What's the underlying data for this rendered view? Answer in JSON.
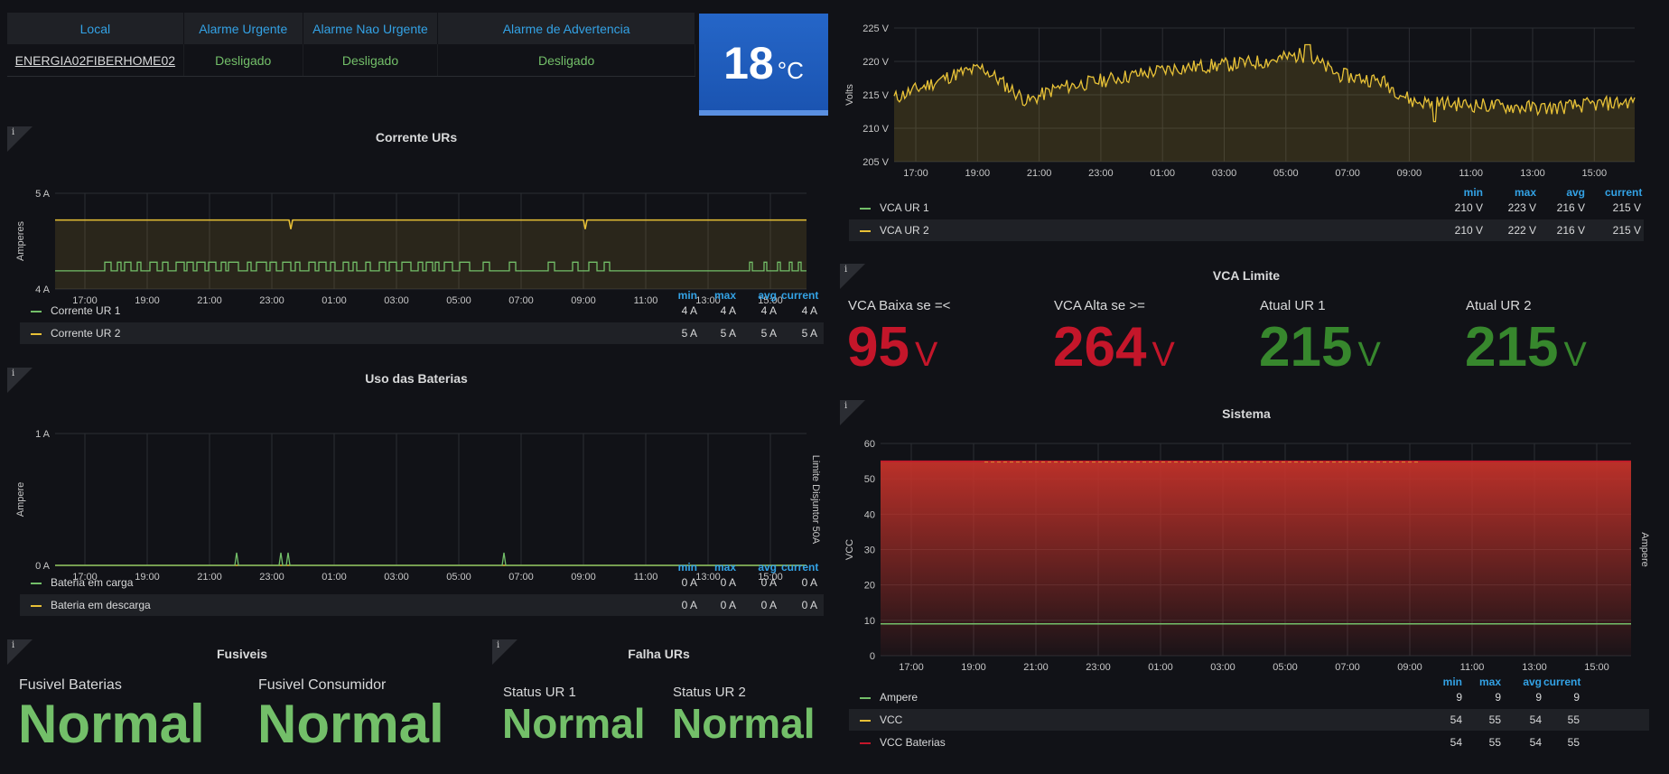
{
  "colors": {
    "green": "#73bf69",
    "yellow": "#e8c036",
    "red": "#c4162a",
    "blue": "#33a2e5",
    "stat_green": "#37872d",
    "temp_bg": "#1f60c4",
    "bg": "#111217"
  },
  "icons": {
    "info": "info-icon"
  },
  "info_glyph": "i",
  "alarm_table": {
    "headers": [
      "Local",
      "Alarme Urgente",
      "Alarme Nao Urgente",
      "Alarme de Advertencia"
    ],
    "row": [
      "ENERGIA02FIBERHOME02",
      "Desligado",
      "Desligado",
      "Desligado"
    ]
  },
  "temperature": {
    "value": "18",
    "unit": "°C"
  },
  "legend_headers": {
    "min": "min",
    "max": "max",
    "avg": "avg",
    "current": "current"
  },
  "corrente": {
    "title": "Corrente URs",
    "chart_data": {
      "type": "line",
      "title": "Corrente URs",
      "ylabel": "Amperes",
      "yticks": [
        "4 A",
        "5 A"
      ],
      "ylim": [
        4,
        5
      ],
      "x": [
        "17:00",
        "19:00",
        "21:00",
        "23:00",
        "01:00",
        "03:00",
        "05:00",
        "07:00",
        "09:00",
        "11:00",
        "13:00",
        "15:00"
      ],
      "series": [
        {
          "name": "Corrente UR 1",
          "color": "#73bf69",
          "min": "4 A",
          "max": "4 A",
          "avg": "4 A",
          "current": "4 A"
        },
        {
          "name": "Corrente UR 2",
          "color": "#e8c036",
          "min": "5 A",
          "max": "5 A",
          "avg": "5 A",
          "current": "5 A"
        }
      ]
    }
  },
  "baterias": {
    "title": "Uso das Baterias",
    "chart_data": {
      "type": "line",
      "title": "Uso das Baterias",
      "ylabel": "Ampere",
      "y2label": "Limite Disjuntor 50A",
      "yticks": [
        "0 A",
        "1 A"
      ],
      "ylim": [
        0,
        1
      ],
      "x": [
        "17:00",
        "19:00",
        "21:00",
        "23:00",
        "01:00",
        "03:00",
        "05:00",
        "07:00",
        "09:00",
        "11:00",
        "13:00",
        "15:00"
      ],
      "series": [
        {
          "name": "Bateria em carga",
          "color": "#73bf69",
          "min": "0 A",
          "max": "0 A",
          "avg": "0 A",
          "current": "0 A"
        },
        {
          "name": "Bateria em descarga",
          "color": "#e8c036",
          "min": "0 A",
          "max": "0 A",
          "avg": "0 A",
          "current": "0 A"
        }
      ]
    }
  },
  "fusiveis": {
    "title": "Fusiveis",
    "items": [
      {
        "label": "Fusivel Baterias",
        "value": "Normal"
      },
      {
        "label": "Fusivel Consumidor",
        "value": "Normal"
      }
    ]
  },
  "falha": {
    "title": "Falha URs",
    "items": [
      {
        "label": "Status UR 1",
        "value": "Normal"
      },
      {
        "label": "Status UR 2",
        "value": "Normal"
      }
    ]
  },
  "vca": {
    "chart_data": {
      "type": "line",
      "ylabel": "Volts",
      "yticks": [
        "205 V",
        "210 V",
        "215 V",
        "220 V",
        "225 V"
      ],
      "ylim": [
        205,
        225
      ],
      "x": [
        "17:00",
        "19:00",
        "21:00",
        "23:00",
        "01:00",
        "03:00",
        "05:00",
        "07:00",
        "09:00",
        "11:00",
        "13:00",
        "15:00"
      ],
      "series": [
        {
          "name": "VCA UR 1",
          "color": "#73bf69",
          "min": "210 V",
          "max": "223 V",
          "avg": "216 V",
          "current": "215 V"
        },
        {
          "name": "VCA UR 2",
          "color": "#e8c036",
          "min": "210 V",
          "max": "222 V",
          "avg": "216 V",
          "current": "215 V"
        }
      ]
    }
  },
  "vca_limite": {
    "title": "VCA Limite",
    "unit": "V",
    "items": [
      {
        "label": "VCA Baixa se =<",
        "value": "95",
        "color": "#c4162a"
      },
      {
        "label": "VCA Alta se >=",
        "value": "264",
        "color": "#c4162a"
      },
      {
        "label": "Atual UR 1",
        "value": "215",
        "color": "#37872d"
      },
      {
        "label": "Atual UR 2",
        "value": "215",
        "color": "#37872d"
      }
    ]
  },
  "sistema": {
    "title": "Sistema",
    "chart_data": {
      "type": "area",
      "title": "Sistema",
      "ylabel": "VCC",
      "y2label": "Ampere",
      "yticks": [
        "0",
        "10",
        "20",
        "30",
        "40",
        "50",
        "60"
      ],
      "ylim": [
        0,
        60
      ],
      "x": [
        "17:00",
        "19:00",
        "21:00",
        "23:00",
        "01:00",
        "03:00",
        "05:00",
        "07:00",
        "09:00",
        "11:00",
        "13:00",
        "15:00"
      ],
      "series": [
        {
          "name": "Ampere",
          "color": "#73bf69",
          "min": "9",
          "max": "9",
          "avg": "9",
          "current": "9"
        },
        {
          "name": "VCC",
          "color": "#e8c036",
          "min": "54",
          "max": "55",
          "avg": "54",
          "current": "55"
        },
        {
          "name": "VCC Baterias",
          "color": "#c4162a",
          "min": "54",
          "max": "55",
          "avg": "54",
          "current": "55"
        }
      ]
    }
  }
}
